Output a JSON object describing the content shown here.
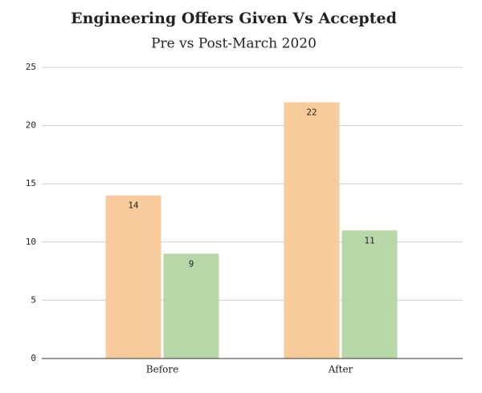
{
  "chart_data": {
    "type": "bar",
    "title": "Engineering Offers Given Vs Accepted",
    "subtitle": "Pre vs Post-March 2020",
    "categories": [
      "Before",
      "After"
    ],
    "series": [
      {
        "color": "#f8cb9c",
        "values": [
          14,
          22
        ]
      },
      {
        "color": "#b7d7a8",
        "values": [
          9,
          11
        ]
      }
    ],
    "ylim": [
      0,
      25
    ],
    "yticks": [
      0,
      5,
      10,
      15,
      20,
      25
    ],
    "grid": true
  }
}
